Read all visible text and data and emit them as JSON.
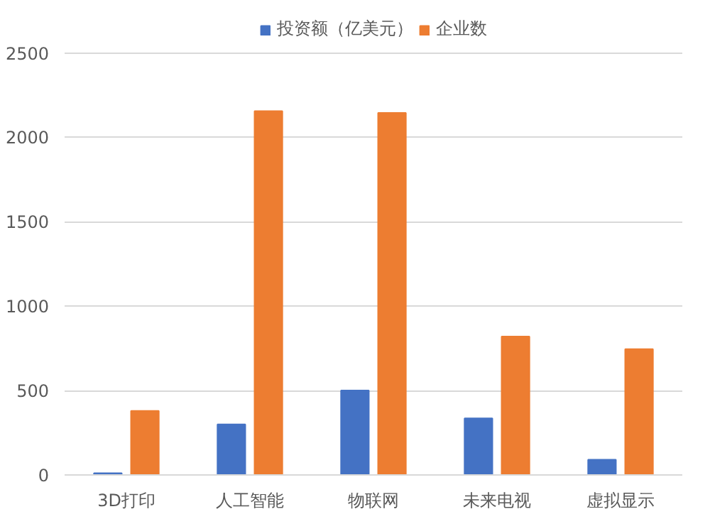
{
  "chart_data": {
    "type": "bar",
    "categories": [
      "3D打印",
      "人工智能",
      "物联网",
      "未来电视",
      "虚拟显示"
    ],
    "series": [
      {
        "name": "投资额（亿美元）",
        "color": "#4472c4",
        "values": [
          10,
          300,
          500,
          335,
          90
        ]
      },
      {
        "name": "企业数",
        "color": "#ed7d31",
        "values": [
          380,
          2155,
          2145,
          820,
          745
        ]
      }
    ],
    "ylim": [
      0,
      2500
    ],
    "yticks": [
      0,
      500,
      1000,
      1500,
      2000,
      2500
    ],
    "grid": "y",
    "legend": "top"
  }
}
